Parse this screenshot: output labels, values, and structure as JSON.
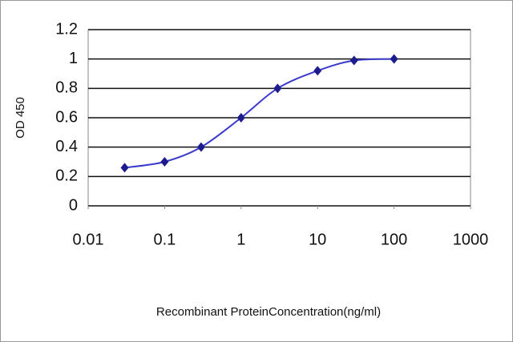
{
  "chart_data": {
    "type": "line",
    "x_label": "Recombinant ProteinConcentration(ng/ml)",
    "y_label": "OD 450",
    "x": [
      0.03,
      0.1,
      0.3,
      1,
      3,
      10,
      30,
      100
    ],
    "series": [
      {
        "color": "#3a3acc",
        "marker_color": "#1c1c8c",
        "values": [
          0.26,
          0.3,
          0.4,
          0.6,
          0.8,
          0.92,
          0.99,
          1.0
        ]
      }
    ],
    "xlim": [
      0.01,
      1000
    ],
    "xticks": [
      0.01,
      0.1,
      1,
      10,
      100,
      1000
    ],
    "x_log": true,
    "ylim": [
      0,
      1.2
    ],
    "yticks": [
      0,
      0.2,
      0.4,
      0.6,
      0.8,
      1,
      1.2
    ],
    "grid": true
  }
}
